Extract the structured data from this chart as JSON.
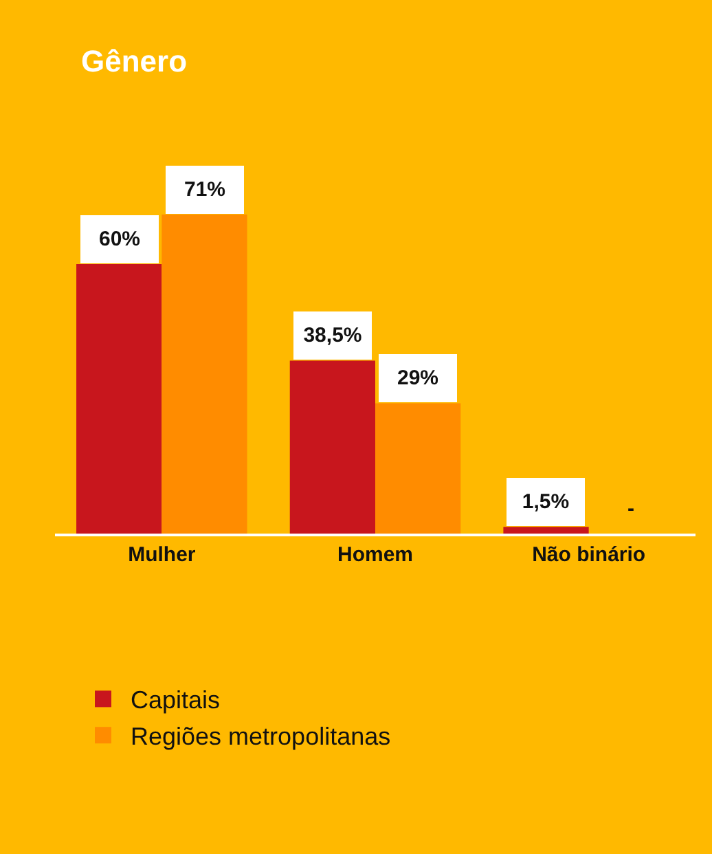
{
  "chart_data": {
    "type": "bar",
    "title": "Gênero",
    "categories": [
      "Mulher",
      "Homem",
      "Não binário"
    ],
    "series": [
      {
        "name": "Capitais",
        "color": "#c8161d",
        "values": [
          60,
          38.5,
          1.5
        ],
        "value_labels": [
          "60%",
          "38,5%",
          "1,5%"
        ]
      },
      {
        "name": "Regiões metropolitanas",
        "color": "#ff8c00",
        "values": [
          71,
          29,
          null
        ],
        "value_labels": [
          "71%",
          "29%",
          "-"
        ]
      }
    ],
    "legend": "bottom",
    "grid": false
  }
}
